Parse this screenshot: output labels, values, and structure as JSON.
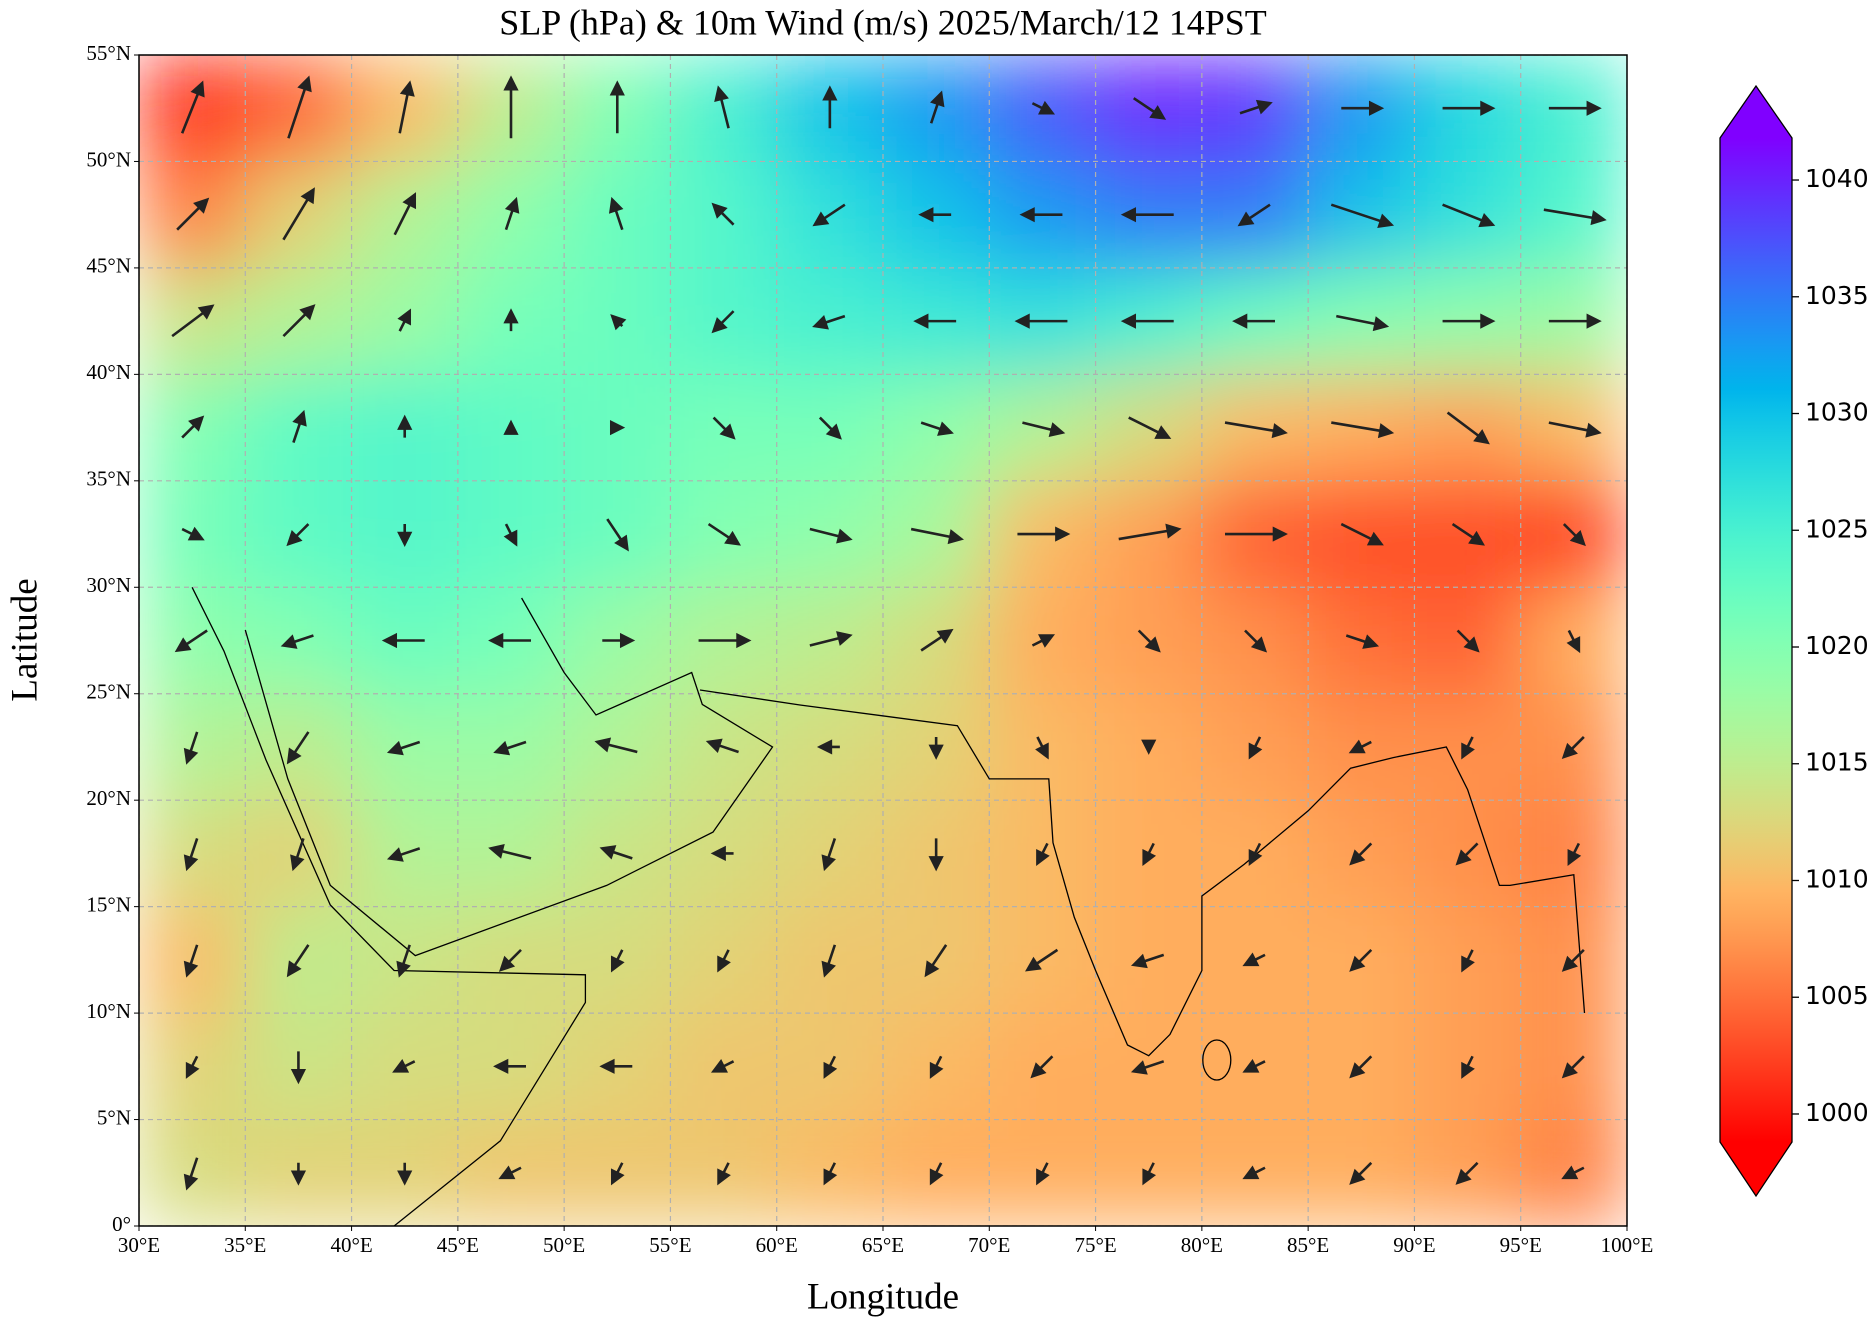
{
  "chart_data": {
    "type": "map",
    "title": "SLP (hPa) & 10m Wind (m/s)  2025/March/12  14PST",
    "x_label": "Longitude",
    "y_label": "Latitude",
    "xlim": [
      30,
      100
    ],
    "ylim": [
      0,
      55
    ],
    "xticks": [
      {
        "value": 30,
        "label": "30°E"
      },
      {
        "value": 35,
        "label": "35°E"
      },
      {
        "value": 40,
        "label": "40°E"
      },
      {
        "value": 45,
        "label": "45°E"
      },
      {
        "value": 50,
        "label": "50°E"
      },
      {
        "value": 55,
        "label": "55°E"
      },
      {
        "value": 60,
        "label": "60°E"
      },
      {
        "value": 65,
        "label": "65°E"
      },
      {
        "value": 70,
        "label": "70°E"
      },
      {
        "value": 75,
        "label": "75°E"
      },
      {
        "value": 80,
        "label": "80°E"
      },
      {
        "value": 85,
        "label": "85°E"
      },
      {
        "value": 90,
        "label": "90°E"
      },
      {
        "value": 95,
        "label": "95°E"
      },
      {
        "value": 100,
        "label": "100°E"
      }
    ],
    "yticks": [
      {
        "value": 0,
        "label": "0°"
      },
      {
        "value": 5,
        "label": "5°N"
      },
      {
        "value": 10,
        "label": "10°N"
      },
      {
        "value": 15,
        "label": "15°N"
      },
      {
        "value": 20,
        "label": "20°N"
      },
      {
        "value": 25,
        "label": "25°N"
      },
      {
        "value": 30,
        "label": "30°N"
      },
      {
        "value": 35,
        "label": "35°N"
      },
      {
        "value": 40,
        "label": "40°N"
      },
      {
        "value": 45,
        "label": "45°N"
      },
      {
        "value": 50,
        "label": "50°N"
      },
      {
        "value": 55,
        "label": "55°N"
      }
    ],
    "grid": true,
    "colormap": "rainbow_r",
    "clim": [
      998.8,
      1041.8
    ],
    "cticks": [
      1000,
      1005,
      1010,
      1015,
      1020,
      1025,
      1030,
      1035,
      1040
    ],
    "slp": {
      "lon": [
        32.5,
        37.5,
        42.5,
        47.5,
        52.5,
        57.5,
        62.5,
        67.5,
        72.5,
        77.5,
        82.5,
        87.5,
        92.5,
        97.5
      ],
      "lat": [
        52.5,
        47.5,
        42.5,
        37.5,
        32.5,
        27.5,
        22.5,
        17.5,
        12.5,
        7.5,
        2.5
      ],
      "values": [
        [
          1001,
          1004,
          1010,
          1015,
          1020,
          1025,
          1030,
          1033,
          1037,
          1040,
          1039,
          1033,
          1028,
          1025
        ],
        [
          1006,
          1012,
          1016,
          1019,
          1022,
          1024,
          1027,
          1030,
          1033,
          1035,
          1035,
          1030,
          1027,
          1024
        ],
        [
          1014,
          1016,
          1018,
          1021,
          1022,
          1024,
          1025,
          1026,
          1027,
          1025,
          1022,
          1020,
          1019,
          1018
        ],
        [
          1020,
          1023,
          1024,
          1023,
          1022,
          1021,
          1021,
          1019,
          1016,
          1013,
          1010,
          1009,
          1008,
          1010
        ],
        [
          1021,
          1023,
          1024,
          1023,
          1022,
          1020,
          1019,
          1017,
          1010,
          1008,
          1004,
          1003,
          1003,
          1002
        ],
        [
          1019,
          1020,
          1022,
          1021,
          1018,
          1016,
          1015,
          1013,
          1009,
          1008,
          1007,
          1005,
          1004,
          1009
        ],
        [
          1016,
          1015,
          1018,
          1018,
          1016,
          1014,
          1013,
          1012,
          1010,
          1009,
          1008,
          1007,
          1007,
          1007
        ],
        [
          1013,
          1012,
          1016,
          1016,
          1014,
          1013,
          1012,
          1011,
          1010,
          1009,
          1009,
          1008,
          1007,
          1006
        ],
        [
          1010,
          1015,
          1014,
          1013,
          1013,
          1012,
          1011,
          1011,
          1010,
          1009,
          1009,
          1009,
          1008,
          1007
        ],
        [
          1012,
          1014,
          1013,
          1013,
          1012,
          1011,
          1011,
          1010,
          1009,
          1009,
          1009,
          1009,
          1008,
          1007
        ],
        [
          1013,
          1012,
          1012,
          1011,
          1011,
          1011,
          1010,
          1009,
          1009,
          1009,
          1009,
          1009,
          1008,
          1006
        ]
      ]
    },
    "wind": {
      "color": "#222222",
      "u": [
        [
          2,
          2,
          1,
          0,
          0,
          -1,
          0,
          1,
          2,
          3,
          3,
          4,
          5,
          5
        ],
        [
          3,
          3,
          2,
          1,
          -1,
          -2,
          -3,
          -3,
          -4,
          -5,
          -3,
          6,
          5,
          6
        ],
        [
          4,
          3,
          1,
          0,
          -1,
          -2,
          -3,
          -4,
          -5,
          -5,
          -4,
          5,
          5,
          5
        ],
        [
          2,
          1,
          0,
          0,
          1,
          2,
          2,
          3,
          4,
          4,
          6,
          6,
          4,
          5
        ],
        [
          2,
          -2,
          0,
          1,
          2,
          3,
          4,
          5,
          5,
          6,
          6,
          4,
          3,
          2
        ],
        [
          -3,
          -3,
          -4,
          -4,
          3,
          5,
          4,
          3,
          2,
          2,
          2,
          3,
          2,
          1
        ],
        [
          -1,
          -2,
          -3,
          -3,
          -4,
          -3,
          -2,
          0,
          1,
          0,
          -1,
          -2,
          -1,
          -2
        ],
        [
          -1,
          -1,
          -3,
          -4,
          -3,
          -2,
          -1,
          0,
          -1,
          -1,
          -1,
          -2,
          -2,
          -1
        ],
        [
          -1,
          -2,
          -1,
          -2,
          -1,
          -1,
          -1,
          -2,
          -3,
          -3,
          -2,
          -2,
          -1,
          -2
        ],
        [
          -1,
          0,
          -2,
          -3,
          -3,
          -2,
          -1,
          -1,
          -2,
          -3,
          -2,
          -2,
          -1,
          -2
        ],
        [
          -1,
          0,
          0,
          -2,
          -1,
          -1,
          -1,
          -1,
          -1,
          -1,
          -2,
          -2,
          -2,
          -2
        ]
      ],
      "v": [
        [
          5,
          6,
          5,
          6,
          5,
          4,
          4,
          3,
          -1,
          -2,
          1,
          0,
          0,
          0
        ],
        [
          3,
          5,
          4,
          3,
          3,
          2,
          -2,
          0,
          0,
          0,
          -2,
          -2,
          -2,
          -1
        ],
        [
          3,
          3,
          2,
          2,
          1,
          -2,
          -1,
          0,
          0,
          0,
          0,
          -1,
          0,
          0
        ],
        [
          2,
          3,
          2,
          1,
          0,
          -2,
          -2,
          -1,
          -1,
          -2,
          -1,
          -1,
          -3,
          -1
        ],
        [
          -1,
          -2,
          -2,
          -2,
          -3,
          -2,
          -1,
          -1,
          0,
          1,
          0,
          -2,
          -2,
          -2
        ],
        [
          -2,
          -1,
          0,
          0,
          0,
          0,
          1,
          2,
          1,
          -2,
          -2,
          -1,
          -2,
          -2
        ],
        [
          -3,
          -3,
          -1,
          -1,
          1,
          1,
          0,
          -2,
          -2,
          -1,
          -2,
          -1,
          -2,
          -2
        ],
        [
          -3,
          -3,
          -1,
          1,
          1,
          0,
          -3,
          -3,
          -2,
          -2,
          -2,
          -2,
          -2,
          -2
        ],
        [
          -3,
          -3,
          -3,
          -2,
          -2,
          -2,
          -3,
          -3,
          -2,
          -1,
          -1,
          -2,
          -2,
          -2
        ],
        [
          -2,
          -3,
          -1,
          0,
          0,
          -1,
          -2,
          -2,
          -2,
          -1,
          -1,
          -2,
          -2,
          -2
        ],
        [
          -3,
          -2,
          -2,
          -1,
          -2,
          -2,
          -2,
          -2,
          -2,
          -2,
          -1,
          -2,
          -2,
          -1
        ]
      ]
    }
  }
}
